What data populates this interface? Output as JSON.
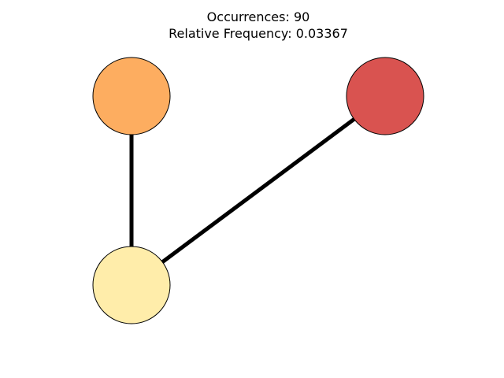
{
  "title": {
    "line1": "Occurrences: 90",
    "line2": "Relative Frequency: 0.03367"
  },
  "graph": {
    "nodes": [
      {
        "id": "top-left",
        "color": "#fdad60"
      },
      {
        "id": "top-right",
        "color": "#d95350"
      },
      {
        "id": "bottom-left",
        "color": "#ffedaa"
      }
    ],
    "edges": [
      {
        "source": "top-left",
        "target": "bottom-left"
      },
      {
        "source": "top-right",
        "target": "bottom-left"
      }
    ],
    "edge_color": "#000000",
    "node_outline_color": "#000000"
  }
}
